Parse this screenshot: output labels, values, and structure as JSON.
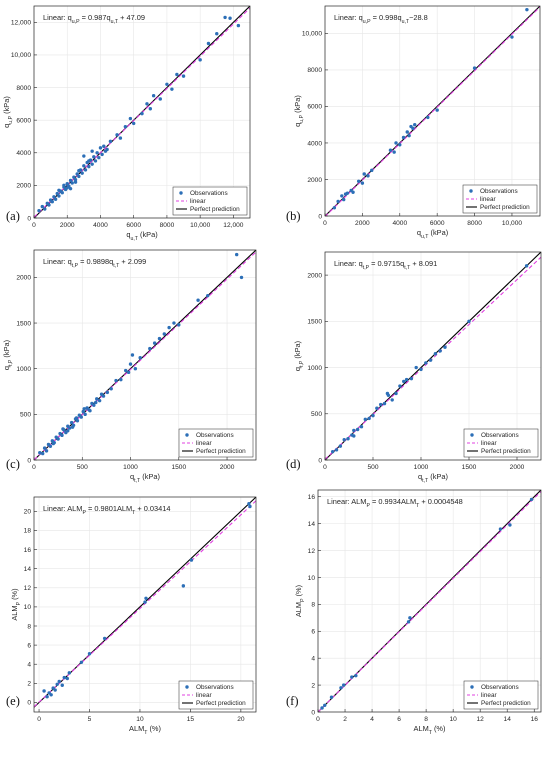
{
  "panel_labels": [
    "(a)",
    "(b)",
    "(c)",
    "(d)",
    "(e)",
    "(f)"
  ],
  "legend": {
    "observations": "Observations",
    "linear": "linear",
    "perfect": "Perfect prediction"
  },
  "colors": {
    "observations": "#2C6FB7",
    "linear": "#E040E0",
    "perfect": "#000000",
    "frame": "#262626"
  },
  "chart_data": [
    {
      "type": "scatter",
      "xlabel": {
        "main": "q",
        "sub": "u,T",
        "unit": " (kPa)"
      },
      "ylabel": {
        "main": "q",
        "sub": "u,P",
        "unit": " (kPa)"
      },
      "equation": {
        "pre": "Linear:  q",
        "sub1": "u,P",
        "mid": " = 0.987q",
        "sub2": "u,T",
        "post": " + 47.09"
      },
      "xlim": [
        0,
        13000
      ],
      "ylim": [
        0,
        13000
      ],
      "xticks": [
        0,
        2000,
        4000,
        6000,
        8000,
        10000,
        12000
      ],
      "xtick_labels": [
        "0",
        "2000",
        "4000",
        "6000",
        "8000",
        "10,000",
        "12,000"
      ],
      "yticks": [
        0,
        2000,
        4000,
        6000,
        8000,
        10000,
        12000
      ],
      "ytick_labels": [
        "0",
        "2000",
        "4000",
        "6000",
        "8000",
        "10,000",
        "12,000"
      ],
      "fit": {
        "slope": 0.987,
        "intercept": 47.09
      },
      "points": [
        [
          300,
          450
        ],
        [
          500,
          700
        ],
        [
          650,
          550
        ],
        [
          800,
          900
        ],
        [
          900,
          800
        ],
        [
          1000,
          1100
        ],
        [
          1100,
          1000
        ],
        [
          1200,
          1300
        ],
        [
          1300,
          1150
        ],
        [
          1400,
          1500
        ],
        [
          1500,
          1350
        ],
        [
          1600,
          1650
        ],
        [
          1700,
          1550
        ],
        [
          1800,
          1900
        ],
        [
          1900,
          1750
        ],
        [
          2000,
          2100
        ],
        [
          2100,
          1950
        ],
        [
          2200,
          2300
        ],
        [
          2300,
          2150
        ],
        [
          2400,
          2500
        ],
        [
          2500,
          2350
        ],
        [
          2600,
          2700
        ],
        [
          2700,
          2550
        ],
        [
          2800,
          2950
        ],
        [
          2900,
          2750
        ],
        [
          3000,
          3200
        ],
        [
          3100,
          2950
        ],
        [
          3200,
          3400
        ],
        [
          3300,
          3150
        ],
        [
          3400,
          3550
        ],
        [
          3500,
          3300
        ],
        [
          3600,
          3750
        ],
        [
          3700,
          3500
        ],
        [
          3800,
          4000
        ],
        [
          3900,
          3700
        ],
        [
          4000,
          4300
        ],
        [
          4100,
          3900
        ],
        [
          4200,
          4400
        ],
        [
          4400,
          4200
        ],
        [
          3500,
          4100
        ],
        [
          3000,
          3800
        ],
        [
          4600,
          4700
        ],
        [
          5000,
          5100
        ],
        [
          5200,
          4900
        ],
        [
          5500,
          5600
        ],
        [
          5800,
          6100
        ],
        [
          6000,
          5800
        ],
        [
          6500,
          6400
        ],
        [
          6800,
          7000
        ],
        [
          7000,
          6700
        ],
        [
          7200,
          7500
        ],
        [
          7600,
          7300
        ],
        [
          8000,
          8200
        ],
        [
          8300,
          7900
        ],
        [
          8600,
          8800
        ],
        [
          9000,
          8700
        ],
        [
          10000,
          9700
        ],
        [
          10500,
          10700
        ],
        [
          11000,
          11300
        ],
        [
          11500,
          12300
        ],
        [
          11800,
          12250
        ],
        [
          12300,
          11800
        ],
        [
          2500,
          2200
        ],
        [
          1800,
          2000
        ],
        [
          2200,
          1800
        ],
        [
          3300,
          3500
        ],
        [
          2700,
          2900
        ],
        [
          4300,
          4100
        ],
        [
          1500,
          1700
        ],
        [
          2000,
          1850
        ]
      ]
    },
    {
      "type": "scatter",
      "xlabel": {
        "main": "q",
        "sub": "u,T",
        "unit": " (kPa)"
      },
      "ylabel": {
        "main": "q",
        "sub": "u,P",
        "unit": " (kPa)"
      },
      "equation": {
        "pre": "Linear:  q",
        "sub1": "u,P",
        "mid": " = 0.998q",
        "sub2": "u,T",
        "post": "−28.8"
      },
      "xlim": [
        0,
        11500
      ],
      "ylim": [
        0,
        11500
      ],
      "xticks": [
        0,
        2000,
        4000,
        6000,
        8000,
        10000
      ],
      "xtick_labels": [
        "0",
        "2000",
        "4000",
        "6000",
        "8000",
        "10,000"
      ],
      "yticks": [
        0,
        2000,
        4000,
        6000,
        8000,
        10000
      ],
      "ytick_labels": [
        "0",
        "2000",
        "4000",
        "6000",
        "8000",
        "10,000"
      ],
      "fit": {
        "slope": 0.998,
        "intercept": -28.8
      },
      "points": [
        [
          500,
          450
        ],
        [
          700,
          800
        ],
        [
          900,
          1100
        ],
        [
          1000,
          900
        ],
        [
          1100,
          1200
        ],
        [
          1200,
          1250
        ],
        [
          1400,
          1400
        ],
        [
          1500,
          1300
        ],
        [
          1800,
          1900
        ],
        [
          2000,
          1800
        ],
        [
          2100,
          2300
        ],
        [
          2300,
          2200
        ],
        [
          2500,
          2500
        ],
        [
          3500,
          3600
        ],
        [
          3700,
          3500
        ],
        [
          3800,
          4000
        ],
        [
          4000,
          3900
        ],
        [
          4200,
          4300
        ],
        [
          4400,
          4600
        ],
        [
          4500,
          4400
        ],
        [
          4600,
          4900
        ],
        [
          4700,
          4800
        ],
        [
          4800,
          5000
        ],
        [
          5500,
          5400
        ],
        [
          6000,
          5800
        ],
        [
          8000,
          8100
        ],
        [
          10000,
          9800
        ],
        [
          10800,
          11300
        ]
      ]
    },
    {
      "type": "scatter",
      "xlabel": {
        "main": "q",
        "sub": "t,T",
        "unit": " (kPa)"
      },
      "ylabel": {
        "main": "q",
        "sub": "t,P",
        "unit": " (kPa)"
      },
      "equation": {
        "pre": "Linear:  q",
        "sub1": "t,P",
        "mid": " = 0.9898q",
        "sub2": "t,T",
        "post": " + 2.099"
      },
      "xlim": [
        0,
        2300
      ],
      "ylim": [
        0,
        2300
      ],
      "xticks": [
        0,
        500,
        1000,
        1500,
        2000
      ],
      "xtick_labels": [
        "0",
        "500",
        "1000",
        "1500",
        "2000"
      ],
      "yticks": [
        0,
        500,
        1000,
        1500,
        2000
      ],
      "ytick_labels": [
        "0",
        "500",
        "1000",
        "1500",
        "2000"
      ],
      "fit": {
        "slope": 0.9898,
        "intercept": 2.099
      },
      "points": [
        [
          60,
          80
        ],
        [
          90,
          70
        ],
        [
          110,
          130
        ],
        [
          130,
          100
        ],
        [
          150,
          170
        ],
        [
          170,
          150
        ],
        [
          190,
          210
        ],
        [
          210,
          190
        ],
        [
          230,
          250
        ],
        [
          250,
          230
        ],
        [
          270,
          290
        ],
        [
          290,
          270
        ],
        [
          310,
          330
        ],
        [
          330,
          300
        ],
        [
          350,
          370
        ],
        [
          370,
          350
        ],
        [
          390,
          410
        ],
        [
          410,
          380
        ],
        [
          430,
          450
        ],
        [
          450,
          430
        ],
        [
          470,
          490
        ],
        [
          490,
          470
        ],
        [
          510,
          530
        ],
        [
          530,
          500
        ],
        [
          550,
          570
        ],
        [
          570,
          550
        ],
        [
          600,
          620
        ],
        [
          620,
          600
        ],
        [
          650,
          670
        ],
        [
          680,
          650
        ],
        [
          700,
          720
        ],
        [
          720,
          700
        ],
        [
          400,
          360
        ],
        [
          350,
          320
        ],
        [
          300,
          340
        ],
        [
          800,
          780
        ],
        [
          850,
          870
        ],
        [
          900,
          880
        ],
        [
          950,
          980
        ],
        [
          980,
          960
        ],
        [
          1000,
          1050
        ],
        [
          1020,
          1150
        ],
        [
          1050,
          1000
        ],
        [
          1100,
          1120
        ],
        [
          1200,
          1220
        ],
        [
          1250,
          1280
        ],
        [
          1300,
          1330
        ],
        [
          1350,
          1380
        ],
        [
          1400,
          1450
        ],
        [
          1450,
          1500
        ],
        [
          1500,
          1480
        ],
        [
          1700,
          1750
        ],
        [
          1800,
          1800
        ],
        [
          2100,
          2250
        ],
        [
          2150,
          2000
        ],
        [
          200,
          180
        ],
        [
          440,
          460
        ],
        [
          520,
          560
        ],
        [
          580,
          540
        ],
        [
          640,
          630
        ],
        [
          760,
          740
        ]
      ]
    },
    {
      "type": "scatter",
      "xlabel": {
        "main": "q",
        "sub": "t,T",
        "unit": " (kPa)"
      },
      "ylabel": {
        "main": "q",
        "sub": "t,P",
        "unit": " (kPa)"
      },
      "equation": {
        "pre": "Linear:  q",
        "sub1": "t,P",
        "mid": " = 0.9715q",
        "sub2": "t,T",
        "post": " + 8.091"
      },
      "xlim": [
        0,
        2250
      ],
      "ylim": [
        0,
        2250
      ],
      "xticks": [
        0,
        500,
        1000,
        1500,
        2000
      ],
      "xtick_labels": [
        "0",
        "500",
        "1000",
        "1500",
        "2000"
      ],
      "yticks": [
        0,
        500,
        1000,
        1500,
        2000
      ],
      "ytick_labels": [
        "0",
        "500",
        "1000",
        "1500",
        "2000"
      ],
      "fit": {
        "slope": 0.9715,
        "intercept": 8.091
      },
      "points": [
        [
          80,
          90
        ],
        [
          120,
          110
        ],
        [
          160,
          150
        ],
        [
          200,
          220
        ],
        [
          240,
          230
        ],
        [
          280,
          270
        ],
        [
          300,
          320
        ],
        [
          340,
          330
        ],
        [
          380,
          360
        ],
        [
          420,
          440
        ],
        [
          460,
          450
        ],
        [
          500,
          480
        ],
        [
          540,
          560
        ],
        [
          580,
          600
        ],
        [
          620,
          610
        ],
        [
          660,
          700
        ],
        [
          700,
          650
        ],
        [
          740,
          720
        ],
        [
          780,
          800
        ],
        [
          820,
          850
        ],
        [
          850,
          870
        ],
        [
          900,
          880
        ],
        [
          950,
          1000
        ],
        [
          1000,
          980
        ],
        [
          1050,
          1050
        ],
        [
          1100,
          1080
        ],
        [
          1150,
          1150
        ],
        [
          1200,
          1180
        ],
        [
          1250,
          1220
        ],
        [
          1500,
          1500
        ],
        [
          2100,
          2100
        ],
        [
          650,
          720
        ],
        [
          300,
          260
        ]
      ]
    },
    {
      "type": "scatter",
      "xlabel": {
        "main": "ALM",
        "sub": "T",
        "unit": " (%)"
      },
      "ylabel": {
        "main": "ALM",
        "sub": "P",
        "unit": " (%)"
      },
      "equation": {
        "pre": "Linear:  ALM",
        "sub1": "P",
        "mid": " = 0.9801ALM",
        "sub2": "T",
        "post": " + 0.03414"
      },
      "xlim": [
        -0.5,
        21.5
      ],
      "ylim": [
        -1,
        21.5
      ],
      "xticks": [
        0,
        5,
        10,
        15,
        20
      ],
      "xtick_labels": [
        "0",
        "5",
        "10",
        "15",
        "20"
      ],
      "yticks": [
        0,
        2,
        4,
        6,
        8,
        10,
        12,
        14,
        16,
        18,
        20
      ],
      "ytick_labels": [
        "0",
        "2",
        "4",
        "6",
        "8",
        "10",
        "12",
        "14",
        "16",
        "18",
        "20"
      ],
      "fit": {
        "slope": 0.9801,
        "intercept": 0.03414
      },
      "points": [
        [
          0.5,
          1.2
        ],
        [
          0.8,
          0.6
        ],
        [
          1.0,
          1.0
        ],
        [
          1.2,
          0.8
        ],
        [
          1.4,
          1.5
        ],
        [
          1.6,
          1.3
        ],
        [
          1.8,
          1.9
        ],
        [
          2.0,
          2.2
        ],
        [
          2.3,
          1.8
        ],
        [
          2.5,
          2.6
        ],
        [
          2.8,
          2.5
        ],
        [
          3.0,
          3.1
        ],
        [
          4.2,
          4.2
        ],
        [
          5.0,
          5.1
        ],
        [
          6.5,
          6.7
        ],
        [
          10.5,
          10.5
        ],
        [
          10.6,
          10.9
        ],
        [
          14.3,
          12.2
        ],
        [
          15.1,
          14.9
        ],
        [
          20.8,
          20.8
        ],
        [
          20.9,
          20.5
        ]
      ]
    },
    {
      "type": "scatter",
      "xlabel": {
        "main": "ALM",
        "sub": "T",
        "unit": " (%)"
      },
      "ylabel": {
        "main": "ALM",
        "sub": "P",
        "unit": " (%)"
      },
      "equation": {
        "pre": "Linear:  ALM",
        "sub1": "P",
        "mid": " = 0.9934ALM",
        "sub2": "T",
        "post": " + 0.0004548"
      },
      "xlim": [
        0,
        16.5
      ],
      "ylim": [
        0,
        16.5
      ],
      "xticks": [
        0,
        2,
        4,
        6,
        8,
        10,
        12,
        14,
        16
      ],
      "xtick_labels": [
        "0",
        "2",
        "4",
        "6",
        "8",
        "10",
        "12",
        "14",
        "16"
      ],
      "yticks": [
        0,
        2,
        4,
        6,
        8,
        10,
        12,
        14,
        16
      ],
      "ytick_labels": [
        "0",
        "2",
        "4",
        "6",
        "8",
        "10",
        "12",
        "14",
        "16"
      ],
      "fit": {
        "slope": 0.9934,
        "intercept": 0.0004548
      },
      "points": [
        [
          0.3,
          0.3
        ],
        [
          0.5,
          0.5
        ],
        [
          1.0,
          1.1
        ],
        [
          1.7,
          1.8
        ],
        [
          1.9,
          2.0
        ],
        [
          2.5,
          2.6
        ],
        [
          2.8,
          2.7
        ],
        [
          6.7,
          6.7
        ],
        [
          6.8,
          7.0
        ],
        [
          13.5,
          13.6
        ],
        [
          14.2,
          13.9
        ],
        [
          15.8,
          15.8
        ]
      ]
    }
  ]
}
